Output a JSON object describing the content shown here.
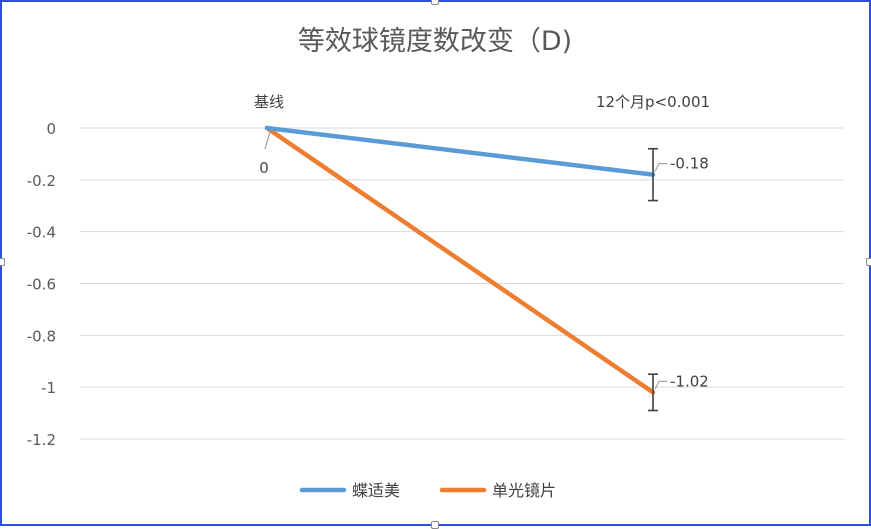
{
  "chart_data": {
    "type": "line",
    "title": "等效球镜度数改变（D)",
    "categories": [
      "基线",
      "12个月p<0.001"
    ],
    "yticks": [
      "0",
      "-0.2",
      "-0.4",
      "-0.6",
      "-0.8",
      "-1",
      "-1.2"
    ],
    "ylim": [
      -1.2,
      0
    ],
    "grid": true,
    "legend_position": "bottom",
    "series": [
      {
        "name": "蝶适美",
        "color": "#5b9bd5",
        "values": [
          0,
          -0.18
        ],
        "data_labels": [
          "0",
          "-0.18"
        ],
        "error": [
          null,
          0.1
        ]
      },
      {
        "name": "单光镜片",
        "color": "#ed7d31",
        "values": [
          0,
          -1.02
        ],
        "data_labels": [
          "0",
          "-1.02"
        ],
        "error": [
          null,
          0.07
        ]
      }
    ]
  }
}
